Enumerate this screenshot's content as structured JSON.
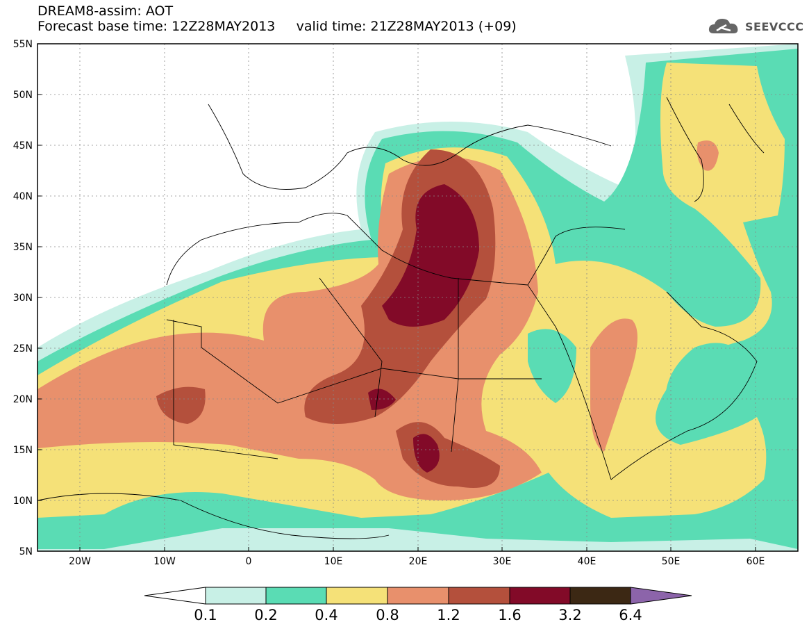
{
  "title": {
    "line1": "DREAM8-assim: AOT",
    "line2": "Forecast base time: 12Z28MAY2013     valid time: 21Z28MAY2013 (+09)"
  },
  "logo": {
    "text": "SEEVCCC",
    "icon": "cloud-icon"
  },
  "map": {
    "lat_labels": [
      "55N",
      "50N",
      "45N",
      "40N",
      "35N",
      "30N",
      "25N",
      "20N",
      "15N",
      "10N",
      "5N"
    ],
    "lon_labels": [
      "20W",
      "10W",
      "0",
      "10E",
      "20E",
      "30E",
      "40E",
      "50E",
      "60E"
    ],
    "lat_range": [
      5,
      55
    ],
    "lon_range": [
      -25,
      65
    ],
    "grid": "dotted"
  },
  "colorbar": {
    "labels": [
      "0.1",
      "0.2",
      "0.4",
      "0.8",
      "1.2",
      "1.6",
      "3.2",
      "6.4"
    ],
    "colors": [
      "#ffffff",
      "#c8f0e6",
      "#5adcb4",
      "#f5e178",
      "#e8906c",
      "#b4503c",
      "#820a28",
      "#3c2814",
      "#8c64aa"
    ]
  }
}
